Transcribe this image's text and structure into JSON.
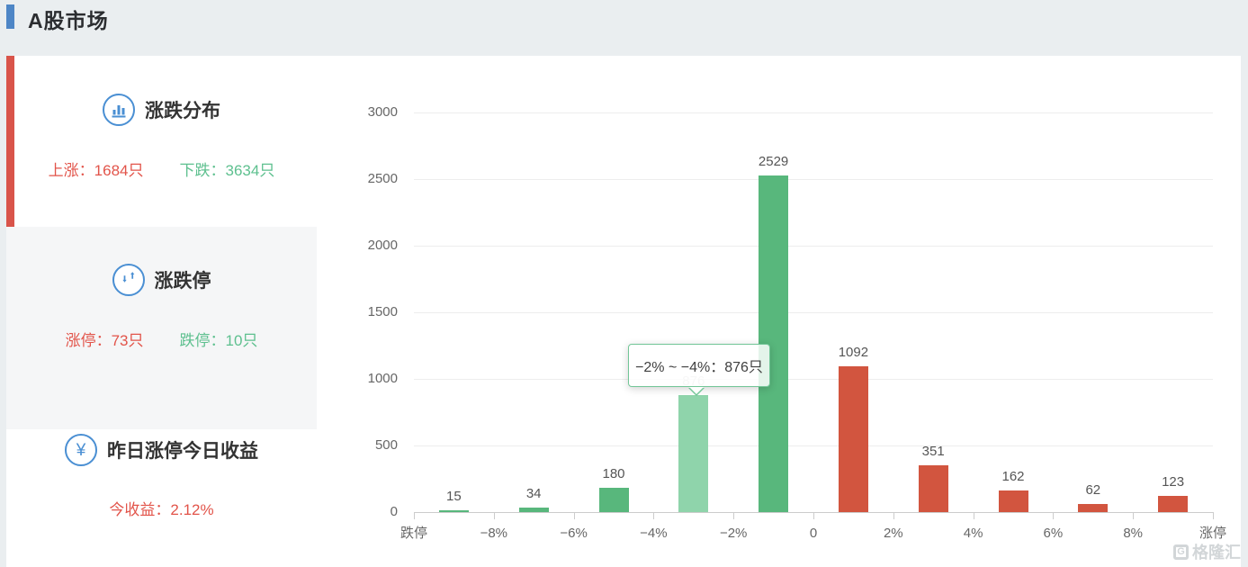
{
  "page": {
    "title": "A股市场"
  },
  "colors": {
    "accent_blue": "#4e86c6",
    "accent_red": "#d9544a",
    "icon_blue": "#4a8fd3",
    "text_red": "#e2544a",
    "text_green": "#5ec08f",
    "bar_green": "#58b77c",
    "bar_green_highlight": "#8fd4ab",
    "bar_red": "#d2553f",
    "tooltip_border": "#72c697"
  },
  "sidebar": {
    "sections": [
      {
        "label": "涨跌分布",
        "icon": "bar-chart-icon",
        "active": false,
        "stats": [
          {
            "text": "上涨：1684只",
            "color": "#e2544a"
          },
          {
            "text": "下跌：3634只",
            "color": "#5ec08f"
          }
        ]
      },
      {
        "label": "涨跌停",
        "icon": "up-down-arrows-icon",
        "active": true,
        "stats": [
          {
            "text": "涨停：73只",
            "color": "#e2544a"
          },
          {
            "text": "跌停：10只",
            "color": "#5ec08f"
          }
        ]
      },
      {
        "label": "昨日涨停今日收益",
        "icon": "yen-icon",
        "active": false,
        "stats": [
          {
            "text": "今收益：2.12%",
            "color": "#e2544a"
          }
        ]
      }
    ]
  },
  "chart_data": {
    "type": "bar",
    "title": "",
    "xlabel": "",
    "ylabel": "",
    "boundaries": [
      "跌停",
      "−8%",
      "−6%",
      "−4%",
      "−2%",
      "0",
      "2%",
      "4%",
      "6%",
      "8%",
      "涨停"
    ],
    "bins": [
      "跌停~−8%",
      "−8%~−6%",
      "−6%~−4%",
      "−4%~−2%",
      "−2%~0",
      "0~2%",
      "2%~4%",
      "4%~6%",
      "6%~8%",
      "8%~涨停"
    ],
    "values": [
      15,
      34,
      180,
      876,
      2529,
      1092,
      351,
      162,
      62,
      123
    ],
    "bar_colors": [
      "#58b77c",
      "#58b77c",
      "#58b77c",
      "#8fd4ab",
      "#58b77c",
      "#d2553f",
      "#d2553f",
      "#d2553f",
      "#d2553f",
      "#d2553f"
    ],
    "ylim": [
      0,
      3000
    ],
    "y_ticks": [
      0,
      500,
      1000,
      1500,
      2000,
      2500,
      3000
    ],
    "grid": true,
    "legend": "none",
    "tooltip": {
      "text": "−2% ~ −4%：876只",
      "target_bin_index": 3
    }
  },
  "watermark": {
    "badge": "G",
    "text": "格隆汇"
  }
}
